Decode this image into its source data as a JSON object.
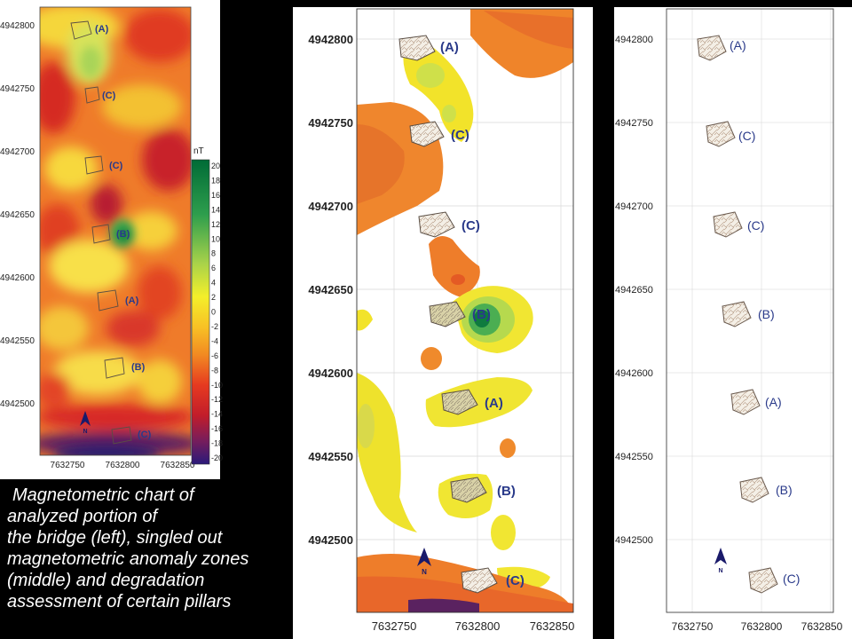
{
  "maps": [
    {
      "name": "left-panel",
      "y_ticks": [
        "4942800",
        "4942750",
        "4942700",
        "4942650",
        "4942600",
        "4942550",
        "4942500"
      ],
      "x_ticks": [
        "7632750",
        "7632800",
        "7632850"
      ],
      "pillars": [
        "(A)",
        "(C)",
        "(C)",
        "(B)",
        "(A)",
        "(B)",
        "(C)"
      ],
      "north": "N"
    },
    {
      "name": "middle-panel",
      "y_ticks": [
        "4942800",
        "4942750",
        "4942700",
        "4942650",
        "4942600",
        "4942550",
        "4942500"
      ],
      "x_ticks": [
        "7632750",
        "7632800",
        "7632850"
      ],
      "pillars": [
        "(A)",
        "(C)",
        "(C)",
        "(B)",
        "(A)",
        "(B)",
        "(C)"
      ],
      "north": "N"
    },
    {
      "name": "right-panel",
      "y_ticks": [
        "4942800",
        "4942750",
        "4942700",
        "4942650",
        "4942600",
        "4942550",
        "4942500"
      ],
      "x_ticks": [
        "7632750",
        "7632800",
        "7632850"
      ],
      "pillars": [
        "(A)",
        "(C)",
        "(C)",
        "(B)",
        "(A)",
        "(B)",
        "(C)"
      ],
      "north": "N"
    }
  ],
  "legend": {
    "unit": "nT",
    "ticks": [
      "20",
      "18",
      "16",
      "14",
      "12",
      "10",
      "8",
      "6",
      "4",
      "2",
      "0",
      "-2",
      "-4",
      "-6",
      "-8",
      "-10",
      "-12",
      "-14",
      "-16",
      "-18",
      "-20"
    ]
  },
  "caption": [
    "Magnetometric chart of",
    "analyzed portion of",
    "the bridge (left), singled out",
    "magnetometric anomaly zones",
    "(middle) and degradation",
    "assessment of certain pillars"
  ]
}
